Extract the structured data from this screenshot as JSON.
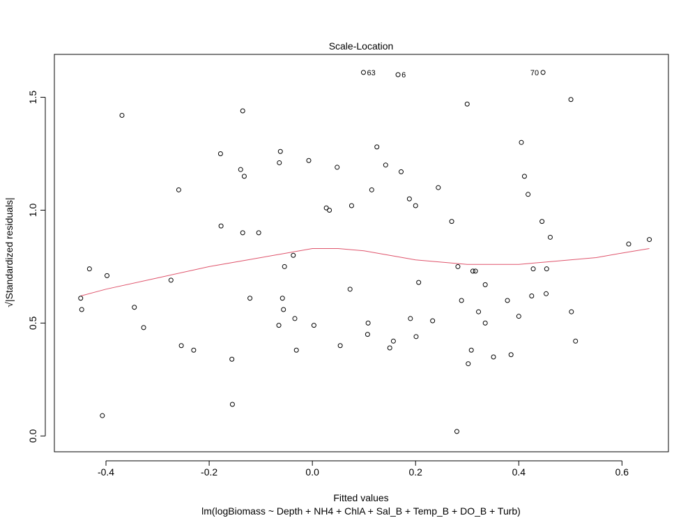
{
  "chart_data": {
    "type": "scatter",
    "title": "Scale-Location",
    "xlabel": "Fitted values",
    "subtitle": "lm(logBiomass ~ Depth + NH4 + ChlA + Sal_B + Temp_B + DO_B + Turb)",
    "ylabel": "√|Standardized residuals|",
    "xlim": [
      -0.5,
      0.69
    ],
    "ylim": [
      -0.07,
      1.69
    ],
    "xticks": [
      -0.4,
      -0.2,
      0.0,
      0.2,
      0.4,
      0.6
    ],
    "xtick_labels": [
      "-0.4",
      "-0.2",
      "0.0",
      "0.2",
      "0.4",
      "0.6"
    ],
    "yticks": [
      0.0,
      0.5,
      1.0,
      1.5
    ],
    "ytick_labels": [
      "0.0",
      "0.5",
      "1.0",
      "1.5"
    ],
    "grid": false,
    "point_color": "#000000",
    "smooth_color": "#DF536B",
    "points": [
      {
        "x": -0.449,
        "y": 0.61
      },
      {
        "x": -0.447,
        "y": 0.56
      },
      {
        "x": -0.432,
        "y": 0.74
      },
      {
        "x": -0.407,
        "y": 0.09
      },
      {
        "x": -0.398,
        "y": 0.71
      },
      {
        "x": -0.369,
        "y": 1.42
      },
      {
        "x": -0.345,
        "y": 0.57
      },
      {
        "x": -0.327,
        "y": 0.48
      },
      {
        "x": -0.274,
        "y": 0.69
      },
      {
        "x": -0.259,
        "y": 1.09
      },
      {
        "x": -0.254,
        "y": 0.4
      },
      {
        "x": -0.23,
        "y": 0.38
      },
      {
        "x": -0.178,
        "y": 1.25
      },
      {
        "x": -0.177,
        "y": 0.93
      },
      {
        "x": -0.156,
        "y": 0.34
      },
      {
        "x": -0.155,
        "y": 0.14
      },
      {
        "x": -0.139,
        "y": 1.18
      },
      {
        "x": -0.135,
        "y": 1.44
      },
      {
        "x": -0.135,
        "y": 0.9
      },
      {
        "x": -0.132,
        "y": 1.15
      },
      {
        "x": -0.121,
        "y": 0.61
      },
      {
        "x": -0.104,
        "y": 0.9
      },
      {
        "x": -0.065,
        "y": 0.49
      },
      {
        "x": -0.064,
        "y": 1.21
      },
      {
        "x": -0.062,
        "y": 1.26
      },
      {
        "x": -0.058,
        "y": 0.61
      },
      {
        "x": -0.056,
        "y": 0.56
      },
      {
        "x": -0.054,
        "y": 0.75
      },
      {
        "x": -0.037,
        "y": 0.8
      },
      {
        "x": -0.034,
        "y": 0.52
      },
      {
        "x": -0.031,
        "y": 0.38
      },
      {
        "x": -0.007,
        "y": 1.22
      },
      {
        "x": 0.003,
        "y": 0.49
      },
      {
        "x": 0.027,
        "y": 1.01
      },
      {
        "x": 0.033,
        "y": 1.0
      },
      {
        "x": 0.048,
        "y": 1.19
      },
      {
        "x": 0.054,
        "y": 0.4
      },
      {
        "x": 0.073,
        "y": 0.65
      },
      {
        "x": 0.076,
        "y": 1.02
      },
      {
        "x": 0.099,
        "y": 1.61,
        "label": "63"
      },
      {
        "x": 0.107,
        "y": 0.45
      },
      {
        "x": 0.108,
        "y": 0.5
      },
      {
        "x": 0.115,
        "y": 1.09
      },
      {
        "x": 0.125,
        "y": 1.28
      },
      {
        "x": 0.142,
        "y": 1.2
      },
      {
        "x": 0.15,
        "y": 0.39
      },
      {
        "x": 0.157,
        "y": 0.42
      },
      {
        "x": 0.166,
        "y": 1.6,
        "label": "6"
      },
      {
        "x": 0.172,
        "y": 1.17
      },
      {
        "x": 0.188,
        "y": 1.05
      },
      {
        "x": 0.19,
        "y": 0.52
      },
      {
        "x": 0.2,
        "y": 1.02
      },
      {
        "x": 0.201,
        "y": 0.44
      },
      {
        "x": 0.206,
        "y": 0.68
      },
      {
        "x": 0.233,
        "y": 0.51
      },
      {
        "x": 0.244,
        "y": 1.1
      },
      {
        "x": 0.27,
        "y": 0.95
      },
      {
        "x": 0.28,
        "y": 0.02
      },
      {
        "x": 0.282,
        "y": 0.75
      },
      {
        "x": 0.289,
        "y": 0.6
      },
      {
        "x": 0.3,
        "y": 1.47
      },
      {
        "x": 0.302,
        "y": 0.32
      },
      {
        "x": 0.308,
        "y": 0.38
      },
      {
        "x": 0.311,
        "y": 0.73
      },
      {
        "x": 0.316,
        "y": 0.73
      },
      {
        "x": 0.322,
        "y": 0.55
      },
      {
        "x": 0.335,
        "y": 0.67
      },
      {
        "x": 0.335,
        "y": 0.5
      },
      {
        "x": 0.351,
        "y": 0.35
      },
      {
        "x": 0.378,
        "y": 0.6
      },
      {
        "x": 0.385,
        "y": 0.36
      },
      {
        "x": 0.4,
        "y": 0.53
      },
      {
        "x": 0.405,
        "y": 1.3
      },
      {
        "x": 0.411,
        "y": 1.15
      },
      {
        "x": 0.418,
        "y": 1.07
      },
      {
        "x": 0.425,
        "y": 0.62
      },
      {
        "x": 0.428,
        "y": 0.74
      },
      {
        "x": 0.445,
        "y": 0.95
      },
      {
        "x": 0.447,
        "y": 1.61,
        "label": "70"
      },
      {
        "x": 0.453,
        "y": 0.63
      },
      {
        "x": 0.454,
        "y": 0.74
      },
      {
        "x": 0.461,
        "y": 0.88
      },
      {
        "x": 0.501,
        "y": 1.49
      },
      {
        "x": 0.502,
        "y": 0.55
      },
      {
        "x": 0.51,
        "y": 0.42
      },
      {
        "x": 0.613,
        "y": 0.85
      },
      {
        "x": 0.653,
        "y": 0.87
      }
    ],
    "smooth_line": [
      {
        "x": -0.449,
        "y": 0.62
      },
      {
        "x": -0.4,
        "y": 0.65
      },
      {
        "x": -0.3,
        "y": 0.7
      },
      {
        "x": -0.2,
        "y": 0.75
      },
      {
        "x": -0.1,
        "y": 0.79
      },
      {
        "x": -0.05,
        "y": 0.81
      },
      {
        "x": 0.0,
        "y": 0.83
      },
      {
        "x": 0.05,
        "y": 0.83
      },
      {
        "x": 0.1,
        "y": 0.82
      },
      {
        "x": 0.15,
        "y": 0.8
      },
      {
        "x": 0.2,
        "y": 0.78
      },
      {
        "x": 0.25,
        "y": 0.77
      },
      {
        "x": 0.3,
        "y": 0.76
      },
      {
        "x": 0.35,
        "y": 0.76
      },
      {
        "x": 0.4,
        "y": 0.76
      },
      {
        "x": 0.45,
        "y": 0.77
      },
      {
        "x": 0.5,
        "y": 0.78
      },
      {
        "x": 0.55,
        "y": 0.79
      },
      {
        "x": 0.6,
        "y": 0.81
      },
      {
        "x": 0.653,
        "y": 0.83
      }
    ]
  }
}
